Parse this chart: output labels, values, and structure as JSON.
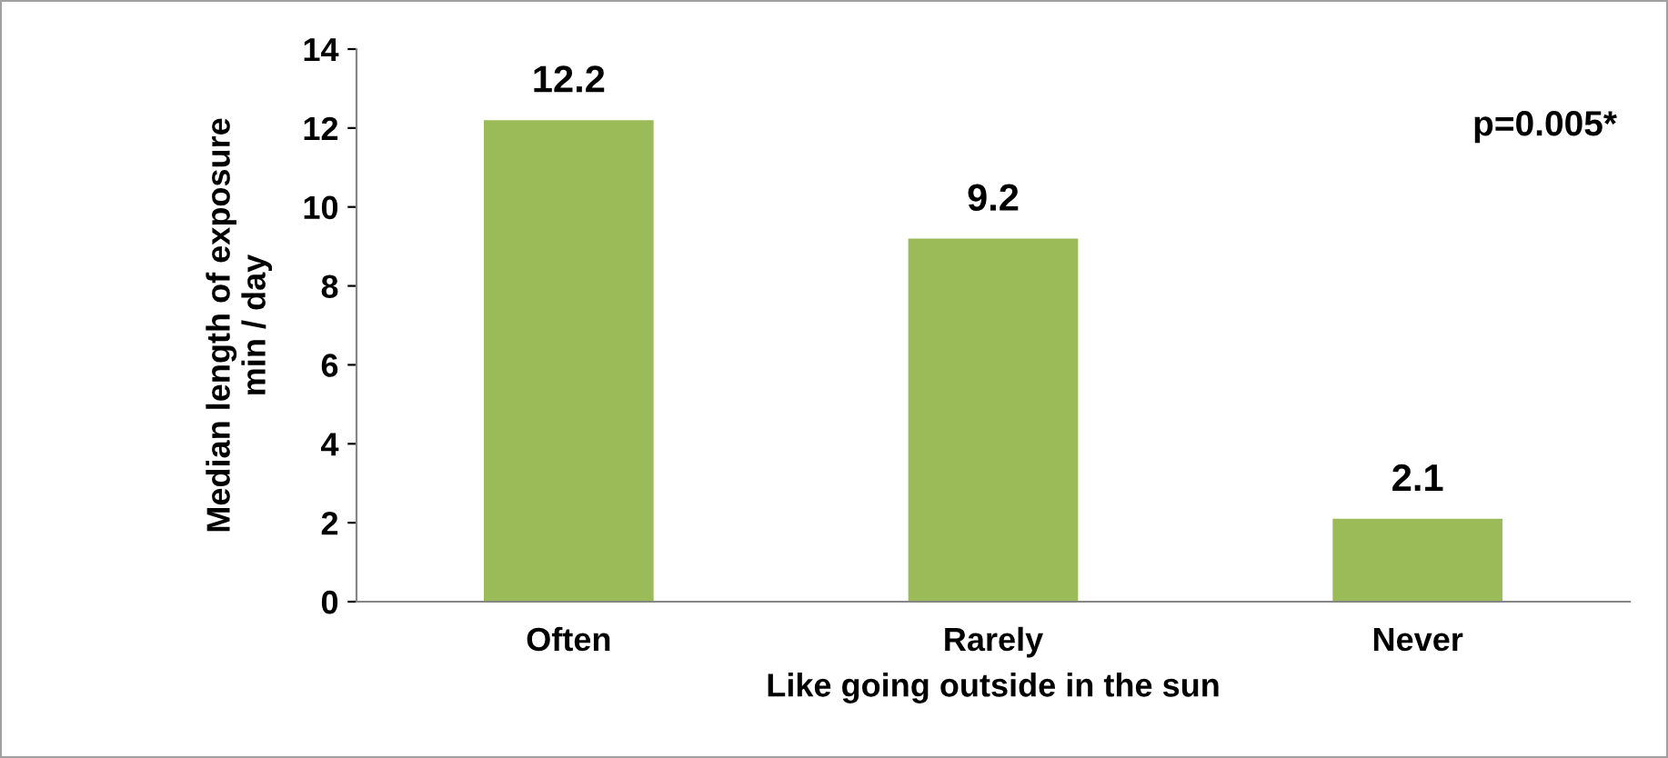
{
  "chart_data": {
    "type": "bar",
    "xlabel": "Like going outside in the sun",
    "ylabel": "Median length of exposure\nmin / day",
    "categories": [
      "Often",
      "Rarely",
      "Never"
    ],
    "values": [
      12.2,
      9.2,
      2.1
    ],
    "color": "#9bbb59",
    "ylim": [
      0,
      14
    ],
    "yticks": [
      0,
      2,
      4,
      6,
      8,
      10,
      12,
      14
    ],
    "grid": false,
    "data_labels": true,
    "annotations": [
      "p=0.005*"
    ]
  }
}
